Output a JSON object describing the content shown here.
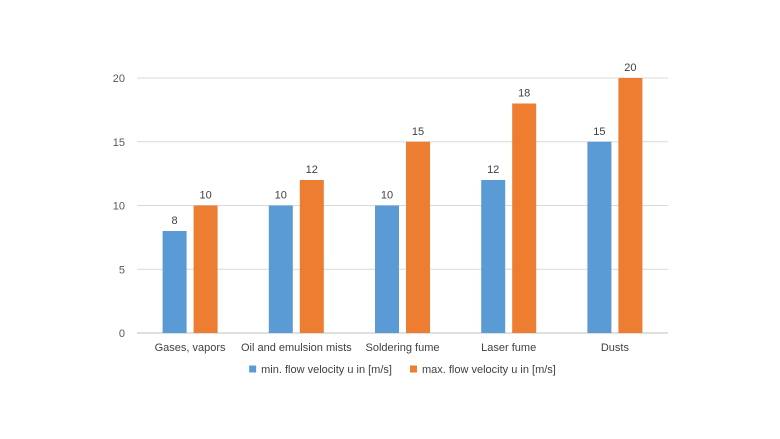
{
  "chart_data": {
    "type": "bar",
    "categories": [
      "Gases, vapors",
      "Oil and emulsion mists",
      "Soldering fume",
      "Laser fume",
      "Dusts"
    ],
    "series": [
      {
        "name": "min. flow velocity u in [m/s]",
        "values": [
          8,
          10,
          10,
          12,
          15
        ],
        "color": "#5b9bd5"
      },
      {
        "name": "max. flow velocity u in [m/s]",
        "values": [
          10,
          12,
          15,
          18,
          20
        ],
        "color": "#ed7d31"
      }
    ],
    "yticks": [
      "0",
      "5",
      "10",
      "15",
      "20"
    ],
    "ylim": [
      0,
      20
    ],
    "grid": true,
    "legend_position": "bottom",
    "data_labels": true
  }
}
